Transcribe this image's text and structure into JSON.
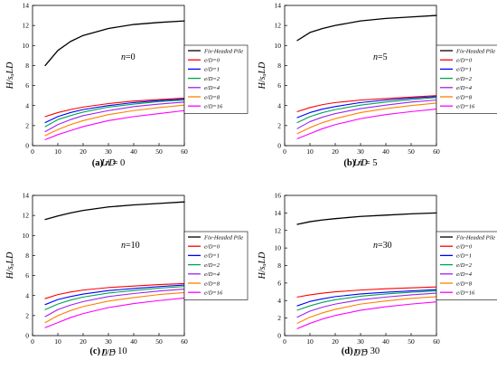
{
  "chart_data": [
    {
      "type": "line",
      "annotation": "n=0",
      "caption": {
        "letter": "(a)",
        "text": " n = 0"
      },
      "xlabel": "L/D",
      "ylabel": "H/sᵤLD",
      "xlim": [
        0,
        60
      ],
      "ylim": [
        0,
        14
      ],
      "xticks": [
        0,
        10,
        20,
        30,
        40,
        50,
        60
      ],
      "yticks": [
        0,
        2,
        4,
        6,
        8,
        10,
        12,
        14
      ],
      "legend_position": "right",
      "x": [
        5,
        10,
        15,
        20,
        30,
        40,
        50,
        60
      ],
      "series": [
        {
          "name": "Fix-Headed Pile",
          "color": "#000000",
          "values": [
            8.0,
            9.5,
            10.4,
            11.0,
            11.7,
            12.1,
            12.3,
            12.45
          ]
        },
        {
          "name": "e/D=0",
          "color": "#ff0000",
          "values": [
            2.9,
            3.3,
            3.6,
            3.85,
            4.2,
            4.45,
            4.6,
            4.75
          ]
        },
        {
          "name": "e/D=1",
          "color": "#0000ff",
          "values": [
            2.3,
            2.9,
            3.3,
            3.6,
            4.0,
            4.3,
            4.5,
            4.65
          ]
        },
        {
          "name": "e/D=2",
          "color": "#00a651",
          "values": [
            1.9,
            2.6,
            3.0,
            3.35,
            3.85,
            4.15,
            4.4,
            4.55
          ]
        },
        {
          "name": "e/D=4",
          "color": "#a020f0",
          "values": [
            1.4,
            2.1,
            2.6,
            3.0,
            3.5,
            3.9,
            4.15,
            4.35
          ]
        },
        {
          "name": "e/D=8",
          "color": "#ff8000",
          "values": [
            1.0,
            1.6,
            2.1,
            2.5,
            3.1,
            3.5,
            3.8,
            4.05
          ]
        },
        {
          "name": "e/D=16",
          "color": "#ff00ff",
          "values": [
            0.6,
            1.1,
            1.5,
            1.9,
            2.5,
            2.9,
            3.2,
            3.5
          ]
        }
      ]
    },
    {
      "type": "line",
      "annotation": "n=5",
      "caption": {
        "letter": "(b)",
        "text": " n = 5"
      },
      "xlabel": "L/D",
      "ylabel": "H/sᵤLD",
      "xlim": [
        0,
        60
      ],
      "ylim": [
        0,
        14
      ],
      "xticks": [
        0,
        10,
        20,
        30,
        40,
        50,
        60
      ],
      "yticks": [
        0,
        2,
        4,
        6,
        8,
        10,
        12,
        14
      ],
      "legend_position": "right",
      "x": [
        5,
        10,
        15,
        20,
        30,
        40,
        50,
        60
      ],
      "series": [
        {
          "name": "Fix-Headed Pile",
          "color": "#000000",
          "values": [
            10.5,
            11.3,
            11.7,
            12.0,
            12.45,
            12.7,
            12.85,
            13.0
          ]
        },
        {
          "name": "e/D=0",
          "color": "#ff0000",
          "values": [
            3.4,
            3.8,
            4.1,
            4.3,
            4.55,
            4.7,
            4.85,
            5.0
          ]
        },
        {
          "name": "e/D=1",
          "color": "#0000ff",
          "values": [
            2.8,
            3.3,
            3.65,
            3.9,
            4.3,
            4.55,
            4.75,
            4.9
          ]
        },
        {
          "name": "e/D=2",
          "color": "#00a651",
          "values": [
            2.3,
            2.9,
            3.3,
            3.6,
            4.05,
            4.35,
            4.6,
            4.8
          ]
        },
        {
          "name": "e/D=4",
          "color": "#a020f0",
          "values": [
            1.7,
            2.4,
            2.85,
            3.2,
            3.7,
            4.05,
            4.35,
            4.55
          ]
        },
        {
          "name": "e/D=8",
          "color": "#ff8000",
          "values": [
            1.2,
            1.8,
            2.3,
            2.7,
            3.3,
            3.7,
            4.0,
            4.25
          ]
        },
        {
          "name": "e/D=16",
          "color": "#ff00ff",
          "values": [
            0.7,
            1.2,
            1.7,
            2.1,
            2.7,
            3.1,
            3.4,
            3.65
          ]
        }
      ]
    },
    {
      "type": "line",
      "annotation": "n=10",
      "caption": {
        "letter": "(c)",
        "text": " n = 10"
      },
      "xlabel": "L/D",
      "ylabel": "H/sᵤLD",
      "xlim": [
        0,
        60
      ],
      "ylim": [
        0,
        14
      ],
      "xticks": [
        0,
        10,
        20,
        30,
        40,
        50,
        60
      ],
      "yticks": [
        0,
        2,
        4,
        6,
        8,
        10,
        12,
        14
      ],
      "legend_position": "right",
      "x": [
        5,
        10,
        15,
        20,
        30,
        40,
        50,
        60
      ],
      "series": [
        {
          "name": "Fix-Headed Pile",
          "color": "#000000",
          "values": [
            11.6,
            11.95,
            12.25,
            12.5,
            12.85,
            13.05,
            13.2,
            13.35
          ]
        },
        {
          "name": "e/D=0",
          "color": "#ff0000",
          "values": [
            3.7,
            4.1,
            4.35,
            4.55,
            4.8,
            4.95,
            5.1,
            5.2
          ]
        },
        {
          "name": "e/D=1",
          "color": "#0000ff",
          "values": [
            3.1,
            3.6,
            3.9,
            4.15,
            4.5,
            4.7,
            4.9,
            5.05
          ]
        },
        {
          "name": "e/D=2",
          "color": "#00a651",
          "values": [
            2.6,
            3.15,
            3.55,
            3.85,
            4.25,
            4.5,
            4.75,
            4.9
          ]
        },
        {
          "name": "e/D=4",
          "color": "#a020f0",
          "values": [
            1.9,
            2.6,
            3.05,
            3.4,
            3.9,
            4.2,
            4.45,
            4.65
          ]
        },
        {
          "name": "e/D=8",
          "color": "#ff8000",
          "values": [
            1.3,
            2.0,
            2.5,
            2.9,
            3.45,
            3.8,
            4.1,
            4.3
          ]
        },
        {
          "name": "e/D=16",
          "color": "#ff00ff",
          "values": [
            0.8,
            1.3,
            1.8,
            2.2,
            2.8,
            3.2,
            3.5,
            3.75
          ]
        }
      ]
    },
    {
      "type": "line",
      "annotation": "n=30",
      "caption": {
        "letter": "(d)",
        "text": " n = 30"
      },
      "xlabel": "L/D",
      "ylabel": "H/sᵤLD",
      "xlim": [
        0,
        60
      ],
      "ylim": [
        0,
        16
      ],
      "xticks": [
        0,
        10,
        20,
        30,
        40,
        50,
        60
      ],
      "yticks": [
        0,
        2,
        4,
        6,
        8,
        10,
        12,
        14,
        16
      ],
      "legend_position": "right",
      "x": [
        5,
        10,
        15,
        20,
        30,
        40,
        50,
        60
      ],
      "series": [
        {
          "name": "Fix-Headed Pile",
          "color": "#000000",
          "values": [
            12.7,
            13.0,
            13.2,
            13.35,
            13.6,
            13.75,
            13.9,
            14.0
          ]
        },
        {
          "name": "e/D=0",
          "color": "#ff0000",
          "values": [
            4.4,
            4.65,
            4.85,
            5.0,
            5.2,
            5.35,
            5.45,
            5.55
          ]
        },
        {
          "name": "e/D=1",
          "color": "#0000ff",
          "values": [
            3.4,
            3.9,
            4.2,
            4.45,
            4.75,
            4.95,
            5.1,
            5.25
          ]
        },
        {
          "name": "e/D=2",
          "color": "#00a651",
          "values": [
            2.9,
            3.4,
            3.8,
            4.1,
            4.5,
            4.75,
            4.95,
            5.1
          ]
        },
        {
          "name": "e/D=4",
          "color": "#a020f0",
          "values": [
            2.1,
            2.8,
            3.25,
            3.6,
            4.1,
            4.4,
            4.65,
            4.85
          ]
        },
        {
          "name": "e/D=8",
          "color": "#ff8000",
          "values": [
            1.4,
            2.1,
            2.6,
            3.0,
            3.6,
            3.95,
            4.25,
            4.45
          ]
        },
        {
          "name": "e/D=16",
          "color": "#ff00ff",
          "values": [
            0.8,
            1.4,
            1.9,
            2.3,
            2.9,
            3.3,
            3.6,
            3.85
          ]
        }
      ]
    }
  ]
}
